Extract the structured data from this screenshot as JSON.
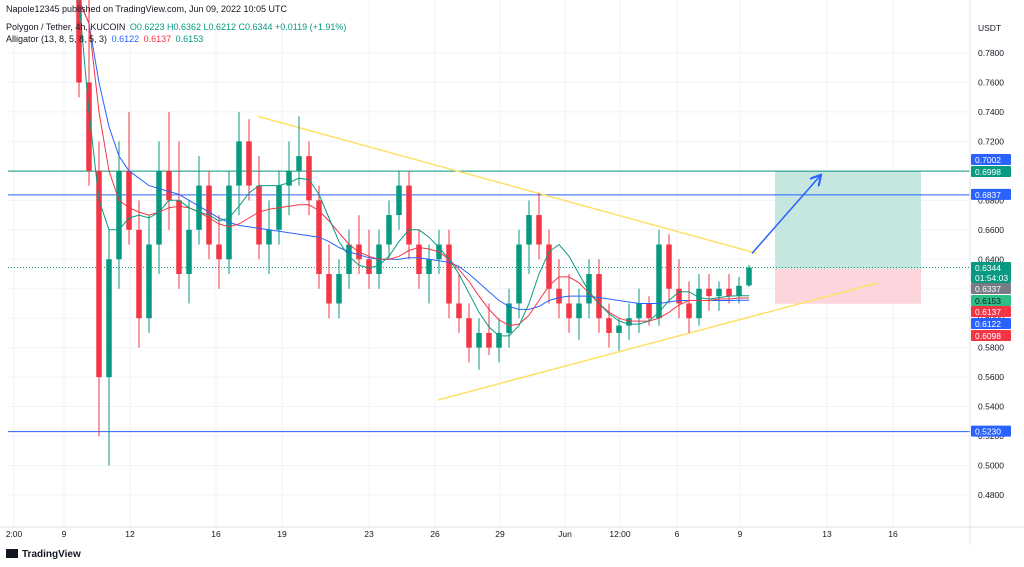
{
  "header": {
    "publish_line": "Napole12345 published on TradingView.com, Jun 09, 2022 10:05 UTC",
    "symbol": "Polygon / Tether, 4h, KUCOIN",
    "ohlc": "O0.6223 H0.6362 L0.6212 C0.6344 +0.0119 (+1.91%)",
    "indicator": "Alligator (13, 8, 5, 8, 5, 3)",
    "jaw_value": "0.6122",
    "teeth_value": "0.6137",
    "lips_value": "0.6153"
  },
  "footer": {
    "brand": "TradingView"
  },
  "colors": {
    "up": "#089981",
    "down": "#f23645",
    "jaw": "#2962ff",
    "teeth": "#f23645",
    "lips": "#089981",
    "trendline": "#ffe066",
    "hline": "#2962ff",
    "target_zone": "#b2dfd6",
    "stop_zone": "#fbcfd6",
    "arrow": "#2962ff"
  },
  "chart_data": {
    "type": "candlestick",
    "symbol": "Polygon / Tether",
    "timeframe": "4h",
    "exchange": "KUCOIN",
    "y_axis_unit": "USDT",
    "ylim": [
      0.47,
      0.83
    ],
    "y_ticks": [
      "0.7800",
      "0.7600",
      "0.7400",
      "0.7200",
      "0.7000",
      "0.6800",
      "0.6600",
      "0.6400",
      "0.6200",
      "0.6000",
      "0.5800",
      "0.5600",
      "0.5400",
      "0.5200",
      "0.5000",
      "0.4800"
    ],
    "x_ticks": [
      "2:00",
      "9",
      "12",
      "16",
      "19",
      "23",
      "26",
      "29",
      "Jun",
      "12:00",
      "6",
      "9",
      "13",
      "16"
    ],
    "grid": true,
    "price_labels": [
      {
        "value": "0.7002",
        "kind": "target-top"
      },
      {
        "value": "0.6998",
        "kind": "target"
      },
      {
        "value": "0.6837",
        "kind": "hline"
      },
      {
        "value": "0.6344",
        "kind": "last"
      },
      {
        "value": "01:54:03",
        "kind": "countdown"
      },
      {
        "value": "0.6337",
        "kind": "entry"
      },
      {
        "value": "0.6153",
        "kind": "lips"
      },
      {
        "value": "0.6137",
        "kind": "teeth"
      },
      {
        "value": "0.6122",
        "kind": "jaw"
      },
      {
        "value": "0.6098",
        "kind": "stop"
      },
      {
        "value": "0.5230",
        "kind": "hline"
      }
    ],
    "horizontal_lines": [
      0.6998,
      0.6837,
      0.523
    ],
    "dotted_price_line": 0.6344,
    "trendlines": [
      {
        "from": [
          "17 May",
          0.737
        ],
        "to": [
          "9 Jun",
          0.644
        ]
      },
      {
        "from": [
          "26 May",
          0.5445
        ],
        "to": [
          "15 Jun",
          0.624
        ]
      }
    ],
    "position": {
      "entry": 0.6337,
      "target": 0.6998,
      "stop": 0.6098
    },
    "candles": [
      [
        0.86,
        0.88,
        0.75,
        0.76
      ],
      [
        0.76,
        0.82,
        0.69,
        0.7
      ],
      [
        0.7,
        0.72,
        0.52,
        0.56
      ],
      [
        0.56,
        0.66,
        0.5,
        0.64
      ],
      [
        0.64,
        0.72,
        0.62,
        0.7
      ],
      [
        0.7,
        0.74,
        0.65,
        0.66
      ],
      [
        0.66,
        0.68,
        0.58,
        0.6
      ],
      [
        0.6,
        0.67,
        0.59,
        0.65
      ],
      [
        0.65,
        0.72,
        0.63,
        0.7
      ],
      [
        0.7,
        0.74,
        0.66,
        0.68
      ],
      [
        0.68,
        0.72,
        0.62,
        0.63
      ],
      [
        0.63,
        0.68,
        0.61,
        0.66
      ],
      [
        0.66,
        0.71,
        0.65,
        0.69
      ],
      [
        0.69,
        0.7,
        0.64,
        0.65
      ],
      [
        0.65,
        0.67,
        0.62,
        0.64
      ],
      [
        0.64,
        0.7,
        0.63,
        0.69
      ],
      [
        0.69,
        0.74,
        0.67,
        0.72
      ],
      [
        0.72,
        0.735,
        0.68,
        0.69
      ],
      [
        0.69,
        0.71,
        0.64,
        0.65
      ],
      [
        0.65,
        0.68,
        0.63,
        0.66
      ],
      [
        0.66,
        0.7,
        0.65,
        0.69
      ],
      [
        0.69,
        0.72,
        0.67,
        0.7
      ],
      [
        0.7,
        0.737,
        0.69,
        0.71
      ],
      [
        0.71,
        0.72,
        0.67,
        0.68
      ],
      [
        0.68,
        0.69,
        0.62,
        0.63
      ],
      [
        0.63,
        0.65,
        0.6,
        0.61
      ],
      [
        0.61,
        0.64,
        0.6,
        0.63
      ],
      [
        0.63,
        0.66,
        0.62,
        0.65
      ],
      [
        0.65,
        0.67,
        0.63,
        0.64
      ],
      [
        0.64,
        0.66,
        0.62,
        0.63
      ],
      [
        0.63,
        0.66,
        0.62,
        0.65
      ],
      [
        0.65,
        0.68,
        0.64,
        0.67
      ],
      [
        0.67,
        0.7,
        0.66,
        0.69
      ],
      [
        0.69,
        0.7,
        0.64,
        0.65
      ],
      [
        0.65,
        0.66,
        0.62,
        0.63
      ],
      [
        0.63,
        0.65,
        0.61,
        0.64
      ],
      [
        0.64,
        0.66,
        0.63,
        0.65
      ],
      [
        0.65,
        0.66,
        0.6,
        0.61
      ],
      [
        0.61,
        0.63,
        0.59,
        0.6
      ],
      [
        0.6,
        0.61,
        0.57,
        0.58
      ],
      [
        0.58,
        0.6,
        0.565,
        0.59
      ],
      [
        0.59,
        0.61,
        0.575,
        0.58
      ],
      [
        0.58,
        0.6,
        0.57,
        0.59
      ],
      [
        0.59,
        0.62,
        0.58,
        0.61
      ],
      [
        0.61,
        0.66,
        0.6,
        0.65
      ],
      [
        0.65,
        0.68,
        0.63,
        0.67
      ],
      [
        0.67,
        0.685,
        0.64,
        0.65
      ],
      [
        0.65,
        0.66,
        0.61,
        0.62
      ],
      [
        0.62,
        0.64,
        0.6,
        0.61
      ],
      [
        0.61,
        0.63,
        0.59,
        0.6
      ],
      [
        0.6,
        0.62,
        0.585,
        0.61
      ],
      [
        0.61,
        0.64,
        0.6,
        0.63
      ],
      [
        0.63,
        0.64,
        0.59,
        0.6
      ],
      [
        0.6,
        0.61,
        0.58,
        0.59
      ],
      [
        0.59,
        0.6,
        0.578,
        0.595
      ],
      [
        0.595,
        0.61,
        0.585,
        0.6
      ],
      [
        0.6,
        0.62,
        0.59,
        0.61
      ],
      [
        0.61,
        0.615,
        0.595,
        0.6
      ],
      [
        0.6,
        0.66,
        0.595,
        0.65
      ],
      [
        0.65,
        0.657,
        0.61,
        0.62
      ],
      [
        0.62,
        0.64,
        0.6,
        0.61
      ],
      [
        0.61,
        0.625,
        0.59,
        0.6
      ],
      [
        0.6,
        0.63,
        0.595,
        0.62
      ],
      [
        0.62,
        0.63,
        0.605,
        0.615
      ],
      [
        0.615,
        0.625,
        0.605,
        0.62
      ],
      [
        0.62,
        0.63,
        0.61,
        0.615
      ],
      [
        0.615,
        0.628,
        0.61,
        0.622
      ],
      [
        0.6223,
        0.6362,
        0.6212,
        0.6344
      ]
    ],
    "alligator": {
      "jaw": [
        0.84,
        0.8,
        0.76,
        0.73,
        0.71,
        0.7,
        0.695,
        0.69,
        0.688,
        0.686,
        0.684,
        0.68,
        0.676,
        0.672,
        0.668,
        0.665,
        0.663,
        0.662,
        0.661,
        0.66,
        0.659,
        0.658,
        0.657,
        0.656,
        0.655,
        0.652,
        0.648,
        0.645,
        0.643,
        0.641,
        0.64,
        0.64,
        0.64,
        0.641,
        0.641,
        0.64,
        0.639,
        0.638,
        0.635,
        0.63,
        0.624,
        0.618,
        0.612,
        0.608,
        0.606,
        0.606,
        0.608,
        0.612,
        0.614,
        0.615,
        0.615,
        0.615,
        0.614,
        0.613,
        0.612,
        0.611,
        0.61,
        0.61,
        0.61,
        0.611,
        0.612,
        0.612,
        0.612,
        0.612,
        0.612,
        0.612,
        0.6122,
        0.6122
      ],
      "teeth": [
        0.86,
        0.8,
        0.74,
        0.7,
        0.68,
        0.675,
        0.672,
        0.67,
        0.672,
        0.675,
        0.676,
        0.675,
        0.672,
        0.668,
        0.664,
        0.662,
        0.664,
        0.668,
        0.672,
        0.674,
        0.675,
        0.676,
        0.677,
        0.677,
        0.673,
        0.666,
        0.658,
        0.65,
        0.645,
        0.642,
        0.64,
        0.64,
        0.642,
        0.646,
        0.648,
        0.647,
        0.645,
        0.64,
        0.633,
        0.625,
        0.615,
        0.606,
        0.599,
        0.595,
        0.596,
        0.602,
        0.612,
        0.622,
        0.628,
        0.628,
        0.624,
        0.617,
        0.61,
        0.604,
        0.6,
        0.598,
        0.598,
        0.598,
        0.6,
        0.604,
        0.609,
        0.612,
        0.612,
        0.612,
        0.613,
        0.613,
        0.6137,
        0.6137
      ],
      "lips": [
        0.82,
        0.74,
        0.68,
        0.66,
        0.66,
        0.668,
        0.67,
        0.668,
        0.672,
        0.68,
        0.68,
        0.675,
        0.672,
        0.67,
        0.666,
        0.668,
        0.676,
        0.685,
        0.69,
        0.69,
        0.69,
        0.692,
        0.695,
        0.694,
        0.684,
        0.668,
        0.652,
        0.642,
        0.636,
        0.634,
        0.636,
        0.642,
        0.652,
        0.66,
        0.66,
        0.655,
        0.648,
        0.64,
        0.63,
        0.617,
        0.604,
        0.594,
        0.588,
        0.588,
        0.595,
        0.61,
        0.63,
        0.645,
        0.65,
        0.642,
        0.63,
        0.618,
        0.61,
        0.603,
        0.598,
        0.596,
        0.596,
        0.598,
        0.604,
        0.612,
        0.618,
        0.618,
        0.614,
        0.613,
        0.614,
        0.615,
        0.6153,
        0.6153
      ]
    }
  }
}
